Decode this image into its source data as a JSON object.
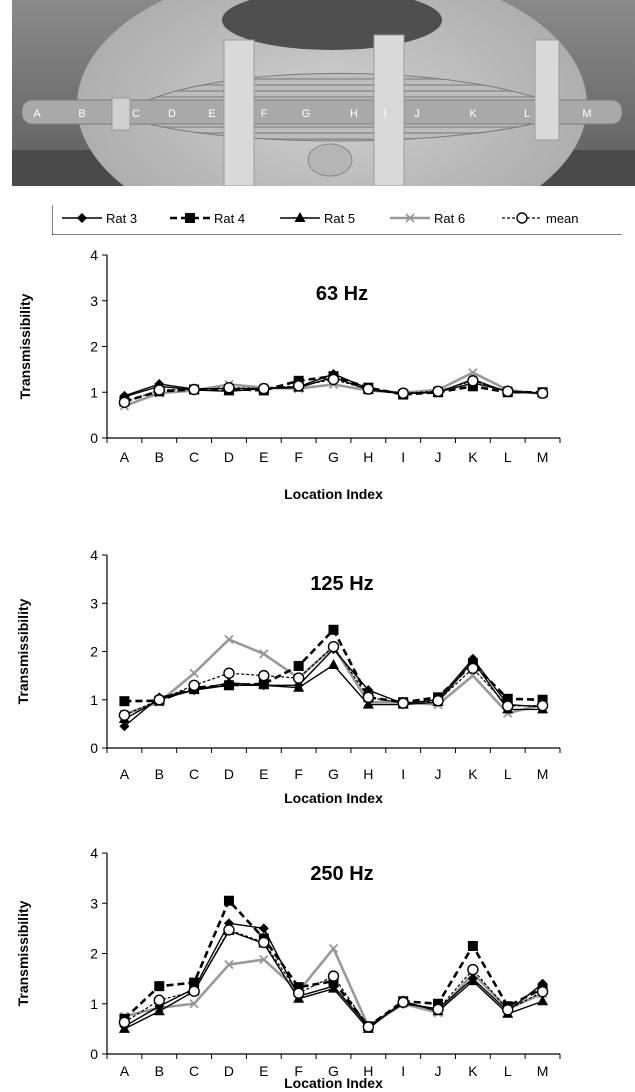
{
  "photo": {
    "point_labels": [
      "A",
      "B",
      "C",
      "D",
      "E",
      "F",
      "G",
      "H",
      "I",
      "J",
      "K",
      "L",
      "M"
    ]
  },
  "legend": {
    "entries": [
      {
        "name": "Rat 3",
        "marker": "diamond",
        "dash": "solid",
        "color": "#000000"
      },
      {
        "name": "Rat 4",
        "marker": "square",
        "dash": "dashed",
        "color": "#000000"
      },
      {
        "name": "Rat 5",
        "marker": "triangle",
        "dash": "solid",
        "color": "#000000"
      },
      {
        "name": "Rat 6",
        "marker": "x",
        "dash": "solid",
        "color": "#999999"
      },
      {
        "name": "mean",
        "marker": "open-circle",
        "dash": "dotted",
        "color": "#000000"
      }
    ]
  },
  "chart_data": [
    {
      "type": "line",
      "title": "63 Hz",
      "xlabel": "Location Index",
      "ylabel": "Transmissibility",
      "categories": [
        "A",
        "B",
        "C",
        "D",
        "E",
        "F",
        "G",
        "H",
        "I",
        "J",
        "K",
        "L",
        "M"
      ],
      "ylim": [
        0,
        4
      ],
      "yticks": [
        0,
        1,
        2,
        3,
        4
      ],
      "grid": false,
      "series": [
        {
          "name": "Rat 3",
          "values": [
            0.92,
            1.18,
            1.07,
            1.08,
            1.08,
            1.12,
            1.4,
            1.08,
            0.97,
            1.0,
            1.28,
            1.0,
            0.98
          ]
        },
        {
          "name": "Rat 4",
          "values": [
            0.8,
            1.02,
            1.06,
            1.07,
            1.04,
            1.25,
            1.35,
            1.1,
            0.95,
            1.0,
            1.13,
            1.0,
            1.0
          ]
        },
        {
          "name": "Rat 5",
          "values": [
            0.9,
            1.13,
            1.05,
            1.02,
            1.08,
            1.1,
            1.33,
            1.05,
            0.97,
            1.0,
            1.2,
            1.03,
            0.98
          ]
        },
        {
          "name": "Rat 6",
          "values": [
            0.7,
            0.98,
            1.04,
            1.17,
            1.1,
            1.08,
            1.17,
            1.04,
            0.99,
            1.05,
            1.43,
            1.05,
            0.96
          ]
        },
        {
          "name": "mean",
          "values": [
            0.78,
            1.05,
            1.06,
            1.1,
            1.08,
            1.14,
            1.28,
            1.07,
            0.98,
            1.02,
            1.25,
            1.02,
            0.98
          ]
        }
      ]
    },
    {
      "type": "line",
      "title": "125 Hz",
      "xlabel": "Location Index",
      "ylabel": "Transmissibility",
      "categories": [
        "A",
        "B",
        "C",
        "D",
        "E",
        "F",
        "G",
        "H",
        "I",
        "J",
        "K",
        "L",
        "M"
      ],
      "ylim": [
        0,
        4
      ],
      "yticks": [
        0,
        1,
        2,
        3,
        4
      ],
      "grid": false,
      "series": [
        {
          "name": "Rat 3",
          "values": [
            0.45,
            1.05,
            1.2,
            1.35,
            1.3,
            1.3,
            2.05,
            1.2,
            0.92,
            1.0,
            1.85,
            0.9,
            0.85
          ]
        },
        {
          "name": "Rat 4",
          "values": [
            0.97,
            0.98,
            1.25,
            1.3,
            1.33,
            1.7,
            2.45,
            1.05,
            0.95,
            1.05,
            1.75,
            1.02,
            1.0
          ]
        },
        {
          "name": "Rat 5",
          "values": [
            0.6,
            1.0,
            1.2,
            1.3,
            1.3,
            1.25,
            1.72,
            0.9,
            0.9,
            0.95,
            1.8,
            0.8,
            0.8
          ]
        },
        {
          "name": "Rat 6",
          "values": [
            0.7,
            0.95,
            1.55,
            2.25,
            1.95,
            1.45,
            2.1,
            0.95,
            0.95,
            0.9,
            1.5,
            0.72,
            0.9
          ]
        },
        {
          "name": "mean",
          "values": [
            0.68,
            1.0,
            1.3,
            1.55,
            1.5,
            1.45,
            2.1,
            1.05,
            0.93,
            0.98,
            1.65,
            0.87,
            0.88
          ]
        }
      ]
    },
    {
      "type": "line",
      "title": "250 Hz",
      "xlabel": "Location Index",
      "ylabel": "Transmissibility",
      "categories": [
        "A",
        "B",
        "C",
        "D",
        "E",
        "F",
        "G",
        "H",
        "I",
        "J",
        "K",
        "L",
        "M"
      ],
      "ylim": [
        0,
        4
      ],
      "yticks": [
        0,
        1,
        2,
        3,
        4
      ],
      "grid": false,
      "series": [
        {
          "name": "Rat 3",
          "values": [
            0.55,
            0.95,
            1.3,
            2.6,
            2.5,
            1.15,
            1.35,
            0.55,
            1.0,
            0.9,
            1.5,
            0.85,
            1.4
          ]
        },
        {
          "name": "Rat 4",
          "values": [
            0.7,
            1.35,
            1.42,
            3.05,
            2.3,
            1.33,
            1.45,
            0.55,
            1.05,
            1.0,
            2.15,
            0.95,
            1.3
          ]
        },
        {
          "name": "Rat 5",
          "values": [
            0.5,
            0.85,
            1.25,
            2.45,
            2.2,
            1.1,
            1.3,
            0.5,
            1.05,
            0.85,
            1.45,
            0.8,
            1.05
          ]
        },
        {
          "name": "Rat 6",
          "values": [
            0.75,
            0.92,
            1.0,
            1.78,
            1.88,
            1.25,
            2.1,
            0.55,
            1.0,
            0.82,
            1.6,
            0.9,
            1.2
          ]
        },
        {
          "name": "mean",
          "values": [
            0.63,
            1.07,
            1.25,
            2.47,
            2.22,
            1.21,
            1.55,
            0.54,
            1.03,
            0.89,
            1.68,
            0.88,
            1.24
          ]
        }
      ]
    }
  ]
}
